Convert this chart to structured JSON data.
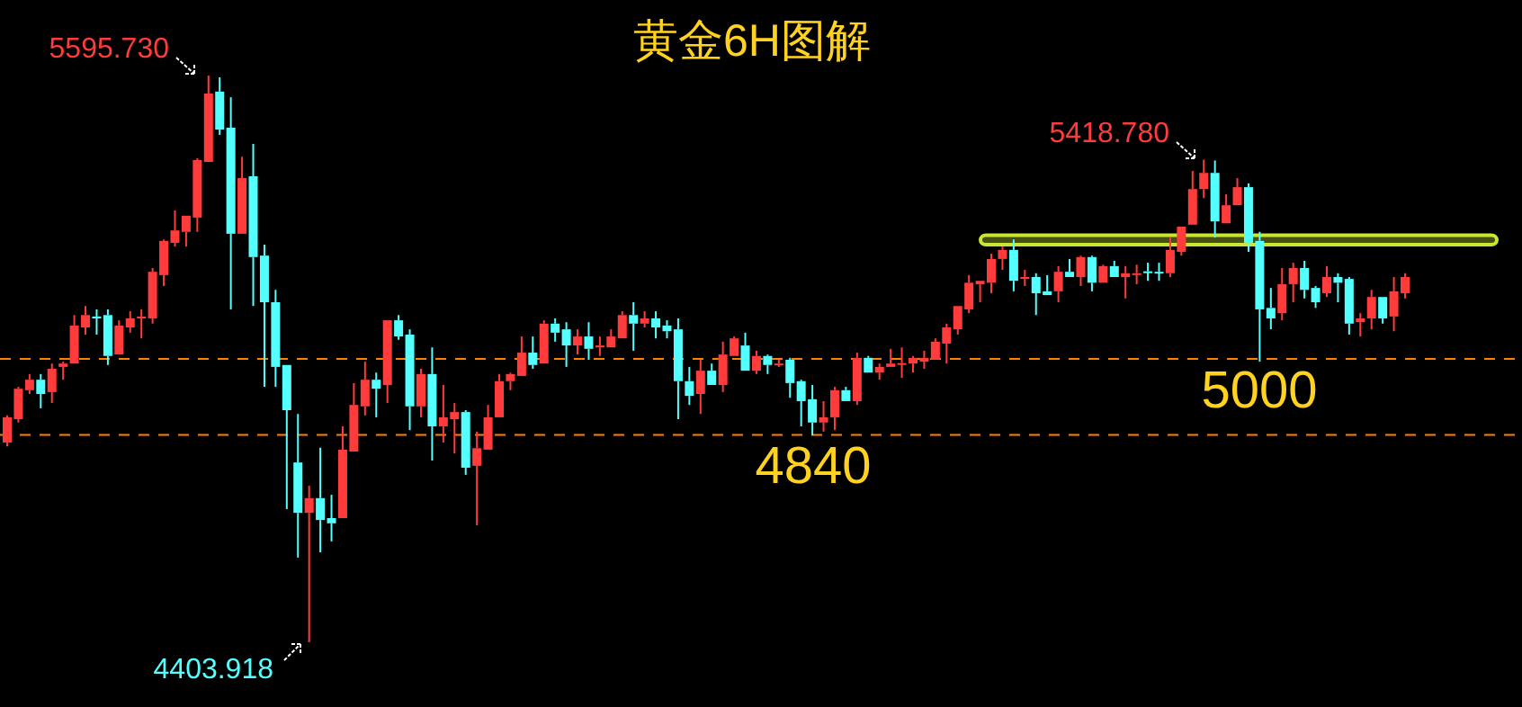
{
  "chart_data": {
    "type": "candlestick",
    "title": "黄金6H图解",
    "categories": [
      null,
      null,
      null,
      null,
      null,
      null,
      null,
      null,
      null,
      null,
      null,
      null,
      null,
      null,
      null,
      null,
      null,
      null,
      null,
      null,
      null,
      null,
      null,
      null,
      null,
      null,
      null,
      null,
      null,
      null,
      null,
      null,
      null,
      null,
      null,
      null,
      null,
      null,
      null,
      null,
      null,
      null,
      null,
      null,
      null,
      null,
      null,
      null,
      null,
      null,
      null,
      null,
      null,
      null,
      null,
      null,
      null,
      null,
      null,
      null,
      null,
      null,
      null,
      null,
      null,
      null,
      null,
      null,
      null,
      null,
      null,
      null,
      null,
      null,
      null,
      null,
      null,
      null,
      null,
      null,
      null,
      null,
      null,
      null,
      null,
      null,
      null,
      null,
      null,
      null,
      null,
      null,
      null,
      null,
      null,
      null,
      null,
      null,
      null,
      null,
      null,
      null,
      null,
      null,
      null,
      null,
      null,
      null,
      null,
      null,
      null,
      null,
      null,
      null,
      null,
      null,
      null,
      null,
      null,
      null,
      null,
      null,
      null,
      null,
      null,
      null
    ],
    "ohlc": [
      [
        4824,
        4881,
        4816,
        4877
      ],
      [
        4873,
        4941,
        4866,
        4937
      ],
      [
        4934,
        4968,
        4926,
        4956
      ],
      [
        4956,
        4968,
        4896,
        4926
      ],
      [
        4930,
        4990,
        4907,
        4979
      ],
      [
        4983,
        4994,
        4956,
        4990
      ],
      [
        4990,
        5092,
        4990,
        5070
      ],
      [
        5066,
        5111,
        5051,
        5092
      ],
      [
        5089,
        5104,
        5051,
        5085
      ],
      [
        5092,
        5104,
        4987,
        5006
      ],
      [
        5009,
        5081,
        5009,
        5070
      ],
      [
        5066,
        5100,
        5055,
        5085
      ],
      [
        5085,
        5104,
        5043,
        5089
      ],
      [
        5085,
        5191,
        5074,
        5183
      ],
      [
        5176,
        5251,
        5153,
        5248
      ],
      [
        5244,
        5312,
        5236,
        5270
      ],
      [
        5267,
        5301,
        5236,
        5301
      ],
      [
        5297,
        5422,
        5267,
        5418
      ],
      [
        5414,
        5595.73,
        5414,
        5558
      ],
      [
        5562,
        5592,
        5471,
        5482
      ],
      [
        5486,
        5550,
        5104,
        5263
      ],
      [
        5263,
        5425,
        5263,
        5380
      ],
      [
        5384,
        5452,
        5111,
        5214
      ],
      [
        5217,
        5240,
        4941,
        5119
      ],
      [
        5119,
        5145,
        4941,
        4983
      ],
      [
        4987,
        4987,
        4684,
        4892
      ],
      [
        4782,
        4884,
        4582,
        4676
      ],
      [
        4676,
        4733,
        4403.918,
        4707
      ],
      [
        4707,
        4813,
        4593,
        4661
      ],
      [
        4665,
        4714,
        4616,
        4654
      ],
      [
        4665,
        4858,
        4665,
        4809
      ],
      [
        4805,
        4949,
        4805,
        4903
      ],
      [
        4900,
        4994,
        4881,
        4956
      ],
      [
        4956,
        4971,
        4877,
        4937
      ],
      [
        4945,
        5081,
        4907,
        5081
      ],
      [
        5081,
        5092,
        5040,
        5047
      ],
      [
        5051,
        5062,
        4850,
        4900
      ],
      [
        4900,
        4979,
        4877,
        4968
      ],
      [
        4968,
        5024,
        4786,
        4858
      ],
      [
        4858,
        4945,
        4824,
        4877
      ],
      [
        4873,
        4907,
        4801,
        4888
      ],
      [
        4888,
        4892,
        4756,
        4771
      ],
      [
        4775,
        4847,
        4650,
        4812
      ],
      [
        4809,
        4903,
        4809,
        4877
      ],
      [
        4877,
        4968,
        4877,
        4953
      ],
      [
        4953,
        4971,
        4934,
        4968
      ],
      [
        4964,
        5047,
        4964,
        5013
      ],
      [
        5013,
        5047,
        4979,
        4987
      ],
      [
        4990,
        5081,
        4990,
        5074
      ],
      [
        5074,
        5085,
        5036,
        5055
      ],
      [
        5062,
        5077,
        4983,
        5028
      ],
      [
        5028,
        5062,
        5009,
        5047
      ],
      [
        5047,
        5077,
        4998,
        5021
      ],
      [
        5024,
        5047,
        5006,
        5028
      ],
      [
        5024,
        5062,
        5024,
        5047
      ],
      [
        5043,
        5100,
        5043,
        5092
      ],
      [
        5092,
        5119,
        5017,
        5074
      ],
      [
        5074,
        5100,
        5066,
        5085
      ],
      [
        5085,
        5100,
        5043,
        5066
      ],
      [
        5070,
        5081,
        5043,
        5058
      ],
      [
        5062,
        5085,
        4873,
        4953
      ],
      [
        4953,
        4983,
        4903,
        4922
      ],
      [
        4926,
        4998,
        4884,
        4975
      ],
      [
        4975,
        4990,
        4945,
        4945
      ],
      [
        4945,
        5036,
        4930,
        5009
      ],
      [
        5006,
        5047,
        5006,
        5043
      ],
      [
        5028,
        5055,
        4975,
        4975
      ],
      [
        4975,
        5017,
        4968,
        5006
      ],
      [
        5006,
        5009,
        4968,
        4987
      ],
      [
        4987,
        4998,
        4983,
        4990
      ],
      [
        4998,
        5002,
        4918,
        4949
      ],
      [
        4953,
        4956,
        4858,
        4911
      ],
      [
        4915,
        4945,
        4839,
        4866
      ],
      [
        4866,
        4911,
        4847,
        4877
      ],
      [
        4877,
        4941,
        4850,
        4934
      ],
      [
        4934,
        4941,
        4911,
        4911
      ],
      [
        4911,
        5013,
        4903,
        5002
      ],
      [
        5002,
        5006,
        4971,
        4971
      ],
      [
        4971,
        4990,
        4956,
        4983
      ],
      [
        4983,
        5021,
        4983,
        4990
      ],
      [
        4989,
        5024,
        4960,
        4991
      ],
      [
        4990,
        5006,
        4971,
        5002
      ],
      [
        4994,
        5017,
        4979,
        5002
      ],
      [
        4998,
        5043,
        4998,
        5036
      ],
      [
        5032,
        5074,
        4990,
        5066
      ],
      [
        5062,
        5111,
        5051,
        5111
      ],
      [
        5104,
        5176,
        5096,
        5160
      ],
      [
        5157,
        5164,
        5119,
        5164
      ],
      [
        5160,
        5221,
        5138,
        5210
      ],
      [
        5210,
        5236,
        5187,
        5229
      ],
      [
        5229,
        5251,
        5142,
        5164
      ],
      [
        5168,
        5187,
        5153,
        5172
      ],
      [
        5172,
        5180,
        5092,
        5138
      ],
      [
        5142,
        5176,
        5134,
        5134
      ],
      [
        5142,
        5195,
        5119,
        5183
      ],
      [
        5183,
        5210,
        5172,
        5172
      ],
      [
        5172,
        5217,
        5153,
        5214
      ],
      [
        5214,
        5217,
        5142,
        5160
      ],
      [
        5160,
        5198,
        5160,
        5195
      ],
      [
        5195,
        5206,
        5172,
        5172
      ],
      [
        5172,
        5195,
        5127,
        5180
      ],
      [
        5178,
        5198,
        5157,
        5180
      ],
      [
        5184,
        5202,
        5164,
        5182
      ],
      [
        5183,
        5202,
        5164,
        5180
      ],
      [
        5180,
        5255,
        5172,
        5229
      ],
      [
        5225,
        5278,
        5217,
        5278
      ],
      [
        5282,
        5395,
        5282,
        5357
      ],
      [
        5357,
        5418.78,
        5338,
        5391
      ],
      [
        5391,
        5417,
        5255,
        5289
      ],
      [
        5285,
        5346,
        5285,
        5323
      ],
      [
        5323,
        5380,
        5323,
        5361
      ],
      [
        5361,
        5369,
        5225,
        5244
      ],
      [
        5248,
        5267,
        4994,
        5104
      ],
      [
        5107,
        5149,
        5062,
        5085
      ],
      [
        5096,
        5191,
        5081,
        5157
      ],
      [
        5157,
        5202,
        5119,
        5191
      ],
      [
        5191,
        5206,
        5127,
        5145
      ],
      [
        5149,
        5153,
        5107,
        5119
      ],
      [
        5138,
        5195,
        5130,
        5172
      ],
      [
        5172,
        5180,
        5119,
        5160
      ],
      [
        5168,
        5172,
        5051,
        5074
      ],
      [
        5077,
        5096,
        5047,
        5085
      ],
      [
        5085,
        5145,
        5062,
        5130
      ],
      [
        5130,
        5130,
        5074,
        5085
      ],
      [
        5089,
        5172,
        5058,
        5142
      ],
      [
        5138,
        5180,
        5127,
        5172
      ]
    ],
    "colors": [
      "#ff3b3b",
      "#ff3b3b",
      "#ff3b3b",
      "#54ffff",
      "#ff3b3b",
      "#ff3b3b",
      "#ff3b3b",
      "#ff3b3b",
      "#54ffff",
      "#54ffff",
      "#ff3b3b",
      "#ff3b3b",
      "#ff3b3b",
      "#ff3b3b",
      "#ff3b3b",
      "#ff3b3b",
      "#ff3b3b",
      "#ff3b3b",
      "#ff3b3b",
      "#54ffff",
      "#54ffff",
      "#ff3b3b",
      "#54ffff",
      "#54ffff",
      "#54ffff",
      "#54ffff",
      "#54ffff",
      "#ff3b3b",
      "#54ffff",
      "#54ffff",
      "#ff3b3b",
      "#ff3b3b",
      "#ff3b3b",
      "#54ffff",
      "#ff3b3b",
      "#54ffff",
      "#54ffff",
      "#ff3b3b",
      "#54ffff",
      "#ff3b3b",
      "#ff3b3b",
      "#54ffff",
      "#ff3b3b",
      "#ff3b3b",
      "#ff3b3b",
      "#ff3b3b",
      "#ff3b3b",
      "#54ffff",
      "#ff3b3b",
      "#54ffff",
      "#54ffff",
      "#ff3b3b",
      "#54ffff",
      "#ff3b3b",
      "#ff3b3b",
      "#ff3b3b",
      "#54ffff",
      "#ff3b3b",
      "#54ffff",
      "#54ffff",
      "#54ffff",
      "#54ffff",
      "#ff3b3b",
      "#54ffff",
      "#ff3b3b",
      "#ff3b3b",
      "#54ffff",
      "#ff3b3b",
      "#54ffff",
      "#ff3b3b",
      "#54ffff",
      "#54ffff",
      "#54ffff",
      "#ff3b3b",
      "#ff3b3b",
      "#54ffff",
      "#ff3b3b",
      "#54ffff",
      "#ff3b3b",
      "#ff3b3b",
      "#ff3b3b",
      "#ff3b3b",
      "#ff3b3b",
      "#ff3b3b",
      "#ff3b3b",
      "#ff3b3b",
      "#ff3b3b",
      "#ff3b3b",
      "#ff3b3b",
      "#ff3b3b",
      "#54ffff",
      "#ff3b3b",
      "#54ffff",
      "#54ffff",
      "#ff3b3b",
      "#54ffff",
      "#ff3b3b",
      "#54ffff",
      "#ff3b3b",
      "#54ffff",
      "#ff3b3b",
      "#ff3b3b",
      "#54ffff",
      "#54ffff",
      "#ff3b3b",
      "#ff3b3b",
      "#ff3b3b",
      "#ff3b3b",
      "#54ffff",
      "#ff3b3b",
      "#ff3b3b",
      "#54ffff",
      "#54ffff",
      "#54ffff",
      "#ff3b3b",
      "#ff3b3b",
      "#54ffff",
      "#54ffff",
      "#ff3b3b",
      "#54ffff",
      "#54ffff",
      "#ff3b3b",
      "#ff3b3b",
      "#54ffff",
      "#ff3b3b",
      "#ff3b3b"
    ],
    "ref_lines": [
      {
        "axis": "y",
        "value": 5000,
        "label": "5000",
        "color": "#ff7f00",
        "line_style": "dashed"
      },
      {
        "axis": "y",
        "value": 4840,
        "label": "4840",
        "color": "#ff7f00",
        "line_style": "dashed"
      }
    ],
    "bands": [
      {
        "axis": "y",
        "from": 5240,
        "to": 5260,
        "color": "#c8e632"
      }
    ],
    "annotations": [
      "5595.730",
      "5418.780",
      "4403.918"
    ]
  }
}
